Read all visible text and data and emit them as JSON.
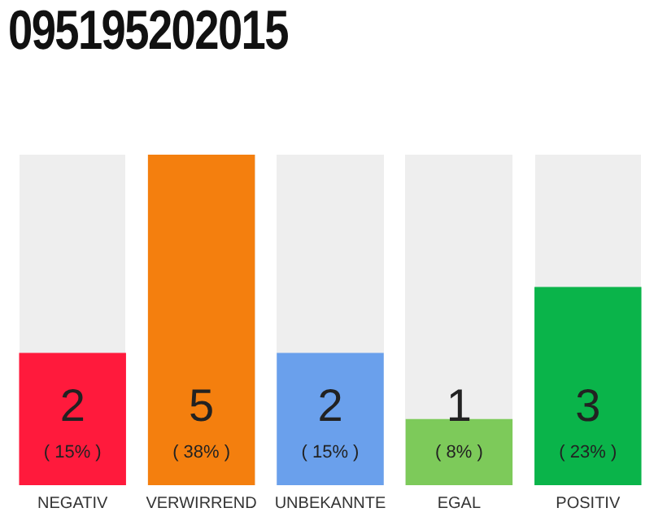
{
  "chart_data": {
    "type": "bar",
    "title": "095195202015",
    "categories": [
      "NEGATIV",
      "VERWIRREND",
      "UNBEKANNTE",
      "EGAL",
      "POSITIV"
    ],
    "values": [
      2,
      5,
      2,
      1,
      3
    ],
    "colors": [
      "#ff1a3c",
      "#f47f0e",
      "#6aa0ec",
      "#7dca5a",
      "#0ab44a"
    ],
    "value_labels": [
      "2\n( 15% )",
      "5\n( 38% )",
      "2\n( 15% )",
      "1\n( 8% )",
      "3\n( 23% )"
    ],
    "tick_labels": "x",
    "grid": false,
    "legend": false
  }
}
